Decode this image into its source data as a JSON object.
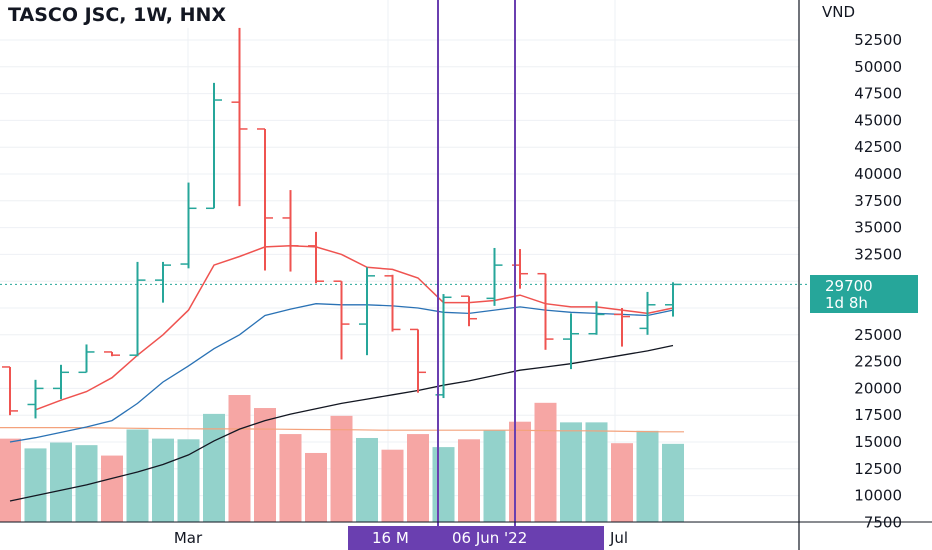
{
  "chart_data": {
    "type": "ohlc",
    "title": "TASCO JSC, 1W, HNX",
    "currency": "VND",
    "ylim": [
      7500,
      55000
    ],
    "yticks": [
      7500,
      10000,
      12500,
      15000,
      17500,
      20000,
      22500,
      25000,
      27500,
      30000,
      32500,
      35000,
      37500,
      40000,
      42500,
      45000,
      47500,
      50000,
      52500
    ],
    "x_labels": [
      "Mar",
      "Jul"
    ],
    "crosshair_tags": [
      "16 M",
      "06 Jun '22"
    ],
    "last_price": "29700",
    "countdown": "1d 8h",
    "colors": {
      "up": "#26a69a",
      "down": "#ef5350",
      "up_volume": "#93d2cb",
      "down_volume": "#f6a6a4",
      "ema_fast": "#ef5350",
      "ema_slow": "#2a72b5",
      "ma_long": "#131722",
      "volume_ma": "#f4a27c",
      "crosshair": "#6a3fb0",
      "price_line": "#26a69a"
    },
    "bars": [
      {
        "o": 22000,
        "h": 22000,
        "l": 17500,
        "c": 17900
      },
      {
        "o": 18500,
        "h": 20800,
        "l": 17200,
        "c": 20000
      },
      {
        "o": 20000,
        "h": 22200,
        "l": 19000,
        "c": 21500
      },
      {
        "o": 21500,
        "h": 24100,
        "l": 21500,
        "c": 23400
      },
      {
        "o": 23400,
        "h": 23400,
        "l": 23000,
        "c": 23100
      },
      {
        "o": 23100,
        "h": 31800,
        "l": 23000,
        "c": 30100
      },
      {
        "o": 30100,
        "h": 31800,
        "l": 28000,
        "c": 31500
      },
      {
        "o": 31600,
        "h": 39200,
        "l": 31200,
        "c": 36800
      },
      {
        "o": 36800,
        "h": 48500,
        "l": 36800,
        "c": 46900
      },
      {
        "o": 46700,
        "h": 53700,
        "l": 37000,
        "c": 44200
      },
      {
        "o": 44200,
        "h": 44200,
        "l": 31000,
        "c": 35900
      },
      {
        "o": 35900,
        "h": 38500,
        "l": 30900,
        "c": 33300
      },
      {
        "o": 33300,
        "h": 34600,
        "l": 29800,
        "c": 30000
      },
      {
        "o": 30000,
        "h": 30000,
        "l": 22700,
        "c": 26000
      },
      {
        "o": 26000,
        "h": 31300,
        "l": 23100,
        "c": 30500
      },
      {
        "o": 30500,
        "h": 30600,
        "l": 25300,
        "c": 25500
      },
      {
        "o": 25500,
        "h": 25500,
        "l": 19600,
        "c": 21500
      },
      {
        "o": 19400,
        "h": 28800,
        "l": 19100,
        "c": 28500
      },
      {
        "o": 28600,
        "h": 28600,
        "l": 25800,
        "c": 26500
      },
      {
        "o": 28400,
        "h": 33100,
        "l": 27700,
        "c": 31500
      },
      {
        "o": 31500,
        "h": 33000,
        "l": 29300,
        "c": 30700
      },
      {
        "o": 30700,
        "h": 30700,
        "l": 23600,
        "c": 24600
      },
      {
        "o": 24600,
        "h": 27000,
        "l": 21800,
        "c": 25100
      },
      {
        "o": 25100,
        "h": 28100,
        "l": 25000,
        "c": 26900
      },
      {
        "o": 26900,
        "h": 27500,
        "l": 23900,
        "c": 26700
      },
      {
        "o": 25600,
        "h": 29000,
        "l": 25000,
        "c": 27800
      },
      {
        "o": 27800,
        "h": 29900,
        "l": 26700,
        "c": 29700
      }
    ],
    "volume": [
      12800,
      11300,
      12200,
      11800,
      10200,
      14200,
      12800,
      12700,
      16600,
      19500,
      17500,
      13500,
      10600,
      16300,
      12900,
      11100,
      13500,
      11500,
      12700,
      14100,
      15400,
      18300,
      15300,
      15300,
      12100,
      14000,
      12000
    ],
    "volume_ma": [
      14500,
      14500,
      14500,
      14500,
      14450,
      14400,
      14350,
      14320,
      14300,
      14300,
      14280,
      14250,
      14200,
      14180,
      14150,
      14100,
      14100,
      14100,
      14100,
      14100,
      14100,
      14050,
      14000,
      14000,
      13950,
      13900,
      13850
    ],
    "ema_fast": [
      null,
      18000,
      18900,
      19700,
      21000,
      23100,
      25000,
      27300,
      31500,
      32300,
      33200,
      33300,
      33200,
      32500,
      31300,
      31100,
      30300,
      28000,
      28000,
      28200,
      28700,
      27900,
      27600,
      27600,
      27300,
      27000,
      27500
    ],
    "ema_slow": [
      15000,
      15400,
      15900,
      16400,
      17000,
      18600,
      20600,
      22100,
      23700,
      25000,
      26800,
      27400,
      27900,
      27800,
      27800,
      27700,
      27500,
      27100,
      27000,
      27300,
      27600,
      27300,
      27100,
      27000,
      26900,
      26800,
      27300
    ],
    "ma_long": [
      9500,
      10000,
      10500,
      11000,
      11600,
      12200,
      12900,
      13800,
      15100,
      16200,
      17000,
      17600,
      18100,
      18600,
      19000,
      19400,
      19800,
      20300,
      20700,
      21200,
      21700,
      22000,
      22300,
      22700,
      23100,
      23500,
      24000
    ]
  }
}
